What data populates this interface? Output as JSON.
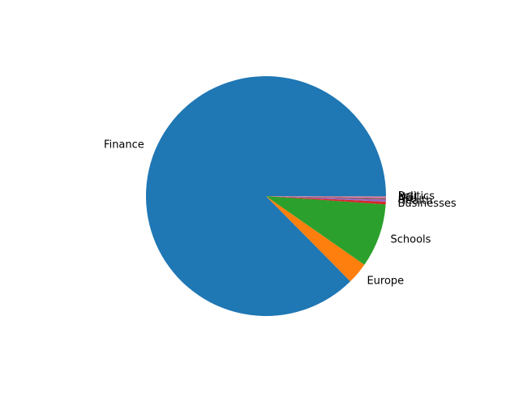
{
  "chart_data": {
    "type": "pie",
    "title": "",
    "start_angle_deg": 0,
    "direction": "counterclockwise",
    "slices": [
      {
        "label": "Finance",
        "value": 87.4,
        "color": "#1f77b4"
      },
      {
        "label": "Europe",
        "value": 2.9,
        "color": "#ff7f0e"
      },
      {
        "label": "Schools",
        "value": 8.6,
        "color": "#2ca02c"
      },
      {
        "label": "Businesses",
        "value": 0.35,
        "color": "#d62728"
      },
      {
        "label": "Health",
        "value": 0.3,
        "color": "#9467bd"
      },
      {
        "label": "Art",
        "value": 0.2,
        "color": "#8c564b"
      },
      {
        "label": "NGI",
        "value": 0.15,
        "color": "#e377c2"
      },
      {
        "label": "Politics",
        "value": 0.1,
        "color": "#7f7f7f"
      }
    ]
  }
}
